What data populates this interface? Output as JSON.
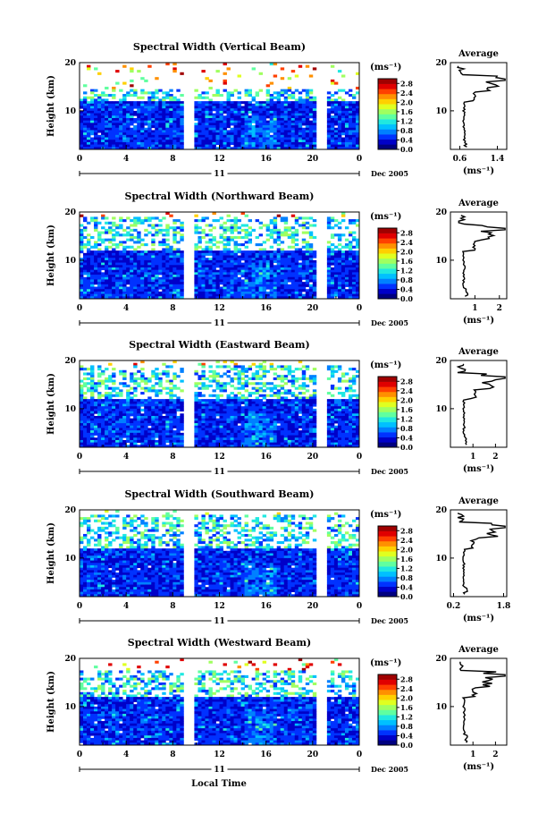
{
  "figure": {
    "xlabel": "Local Time",
    "day_label": "11",
    "date_label": "Dec 2005",
    "colors": [
      "#000080",
      "#0000c8",
      "#0032ff",
      "#0080ff",
      "#00c0ff",
      "#20e8e0",
      "#60ffa0",
      "#a0ff60",
      "#e0ff20",
      "#ffd000",
      "#ff9000",
      "#ff4000",
      "#e00000",
      "#a00000"
    ]
  },
  "chart_data": [
    {
      "type": "heatmap",
      "title": "Spectral Width (Vertical Beam)",
      "ylabel": "Height (km)",
      "x_ticks": [
        "0",
        "4",
        "8",
        "12",
        "16",
        "20",
        "0"
      ],
      "xlim": [
        0,
        24
      ],
      "y_ticks": [
        "10",
        "20"
      ],
      "ylim": [
        2,
        20
      ],
      "colorbar": {
        "label": "(ms⁻¹)",
        "ticks": [
          "0.0",
          "0.4",
          "0.8",
          "1.2",
          "1.6",
          "2.0",
          "2.4",
          "2.8"
        ],
        "range": [
          0,
          3.0
        ]
      },
      "data_gaps": [
        [
          8.9,
          9.7
        ],
        [
          20.4,
          21.2
        ]
      ],
      "avg_profile": {
        "title": "Average",
        "xlabel": "(ms⁻¹)",
        "x_ticks": [
          "0.6",
          "1.4"
        ],
        "xlim": [
          0.4,
          1.6
        ],
        "y_ticks": [
          "10",
          "20"
        ]
      }
    },
    {
      "type": "heatmap",
      "title": "Spectral Width (Northward Beam)",
      "ylabel": "Height (km)",
      "x_ticks": [
        "0",
        "4",
        "8",
        "12",
        "16",
        "20",
        "0"
      ],
      "xlim": [
        0,
        24
      ],
      "y_ticks": [
        "10",
        "20"
      ],
      "ylim": [
        2,
        20
      ],
      "colorbar": {
        "label": "(ms⁻¹)",
        "ticks": [
          "0.0",
          "0.4",
          "0.8",
          "1.2",
          "1.6",
          "2.0",
          "2.4",
          "2.8"
        ],
        "range": [
          0,
          3.0
        ]
      },
      "data_gaps": [
        [
          8.9,
          9.7
        ],
        [
          20.4,
          21.2
        ]
      ],
      "avg_profile": {
        "title": "Average",
        "xlabel": "(ms⁻¹)",
        "x_ticks": [
          "1",
          "2"
        ],
        "xlim": [
          0,
          2.3
        ],
        "y_ticks": [
          "10",
          "20"
        ]
      }
    },
    {
      "type": "heatmap",
      "title": "Spectral Width (Eastward Beam)",
      "ylabel": "Height (km)",
      "x_ticks": [
        "0",
        "4",
        "8",
        "12",
        "16",
        "20",
        "0"
      ],
      "xlim": [
        0,
        24
      ],
      "y_ticks": [
        "10",
        "20"
      ],
      "ylim": [
        2,
        20
      ],
      "colorbar": {
        "label": "(ms⁻¹)",
        "ticks": [
          "0.0",
          "0.4",
          "0.8",
          "1.2",
          "1.6",
          "2.0",
          "2.4",
          "2.8"
        ],
        "range": [
          0,
          3.0
        ]
      },
      "data_gaps": [
        [
          8.9,
          9.7
        ],
        [
          20.4,
          21.2
        ]
      ],
      "avg_profile": {
        "title": "Average",
        "xlabel": "(ms⁻¹)",
        "x_ticks": [
          "1",
          "2"
        ],
        "xlim": [
          0,
          2.5
        ],
        "y_ticks": [
          "10",
          "20"
        ]
      }
    },
    {
      "type": "heatmap",
      "title": "Spectral Width (Southward Beam)",
      "ylabel": "Height (km)",
      "x_ticks": [
        "0",
        "4",
        "8",
        "12",
        "16",
        "20",
        "0"
      ],
      "xlim": [
        0,
        24
      ],
      "y_ticks": [
        "10",
        "20"
      ],
      "ylim": [
        2,
        20
      ],
      "colorbar": {
        "label": "(ms⁻¹)",
        "ticks": [
          "0.0",
          "0.4",
          "0.8",
          "1.2",
          "1.6",
          "2.0",
          "2.4",
          "2.8"
        ],
        "range": [
          0,
          3.0
        ]
      },
      "data_gaps": [
        [
          8.9,
          9.7
        ],
        [
          20.4,
          21.2
        ]
      ],
      "avg_profile": {
        "title": "Average",
        "xlabel": "(ms⁻¹)",
        "x_ticks": [
          "0.2",
          "1.8"
        ],
        "xlim": [
          0.1,
          1.9
        ],
        "y_ticks": [
          "10",
          "20"
        ]
      }
    },
    {
      "type": "heatmap",
      "title": "Spectral Width (Westward Beam)",
      "ylabel": "Height (km)",
      "x_ticks": [
        "0",
        "4",
        "8",
        "12",
        "16",
        "20",
        "0"
      ],
      "xlim": [
        0,
        24
      ],
      "y_ticks": [
        "10",
        "20"
      ],
      "ylim": [
        2,
        20
      ],
      "colorbar": {
        "label": "(ms⁻¹)",
        "ticks": [
          "0.0",
          "0.4",
          "0.8",
          "1.2",
          "1.6",
          "2.0",
          "2.4",
          "2.8"
        ],
        "range": [
          0,
          3.0
        ]
      },
      "data_gaps": [
        [
          8.9,
          9.7
        ],
        [
          20.4,
          21.2
        ]
      ],
      "avg_profile": {
        "title": "Average",
        "xlabel": "(ms⁻¹)",
        "x_ticks": [
          "1",
          "2"
        ],
        "xlim": [
          0,
          2.5
        ],
        "y_ticks": [
          "10",
          "20"
        ]
      }
    }
  ]
}
